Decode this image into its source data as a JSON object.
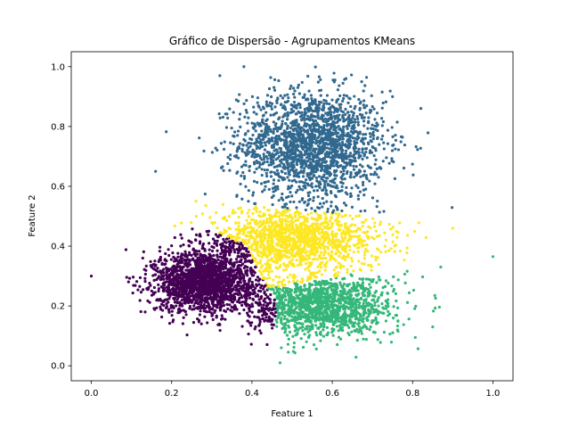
{
  "chart_data": {
    "type": "scatter",
    "title": "Gráfico de Dispersão - Agrupamentos KMeans",
    "xlabel": "Feature 1",
    "ylabel": "Feature 2",
    "xlim": [
      -0.05,
      1.05
    ],
    "ylim": [
      -0.05,
      1.05
    ],
    "xticks": [
      0.0,
      0.2,
      0.4,
      0.6,
      0.8,
      1.0
    ],
    "yticks": [
      0.0,
      0.2,
      0.4,
      0.6,
      0.8,
      1.0
    ],
    "xtick_labels": [
      "0.0",
      "0.2",
      "0.4",
      "0.6",
      "0.8",
      "1.0"
    ],
    "ytick_labels": [
      "0.0",
      "0.2",
      "0.4",
      "0.6",
      "0.8",
      "1.0"
    ],
    "grid": false,
    "colors": [
      "#440154",
      "#35b779",
      "#fde725",
      "#31688e"
    ],
    "cluster_regions": [
      {
        "color": "#31688e",
        "center": [
          0.55,
          0.74
        ],
        "spread": [
          0.09,
          0.09
        ],
        "x_range": [
          0.16,
          0.9
        ],
        "y_range": [
          0.5,
          1.0
        ]
      },
      {
        "color": "#fde725",
        "center": [
          0.5,
          0.42
        ],
        "spread": [
          0.11,
          0.05
        ],
        "x_range": [
          0.2,
          0.9
        ],
        "y_range": [
          0.25,
          0.58
        ]
      },
      {
        "color": "#440154",
        "center": [
          0.28,
          0.28
        ],
        "spread": [
          0.06,
          0.05
        ],
        "x_range": [
          0.08,
          0.45
        ],
        "y_range": [
          0.08,
          0.46
        ]
      },
      {
        "color": "#35b779",
        "center": [
          0.57,
          0.2
        ],
        "spread": [
          0.09,
          0.05
        ],
        "x_range": [
          0.38,
          1.0
        ],
        "y_range": [
          0.0,
          0.37
        ]
      }
    ],
    "outliers": [
      {
        "x": 0.0,
        "y": 0.3,
        "color": "#440154"
      },
      {
        "x": 1.0,
        "y": 0.365,
        "color": "#35b779"
      },
      {
        "x": 0.9,
        "y": 0.46,
        "color": "#fde725"
      },
      {
        "x": 0.87,
        "y": 0.33,
        "color": "#35b779"
      },
      {
        "x": 0.38,
        "y": 1.0,
        "color": "#31688e"
      },
      {
        "x": 0.32,
        "y": 0.97,
        "color": "#31688e"
      },
      {
        "x": 0.75,
        "y": 0.9,
        "color": "#31688e"
      },
      {
        "x": 0.16,
        "y": 0.65,
        "color": "#31688e"
      },
      {
        "x": 0.85,
        "y": 0.13,
        "color": "#35b779"
      },
      {
        "x": 0.47,
        "y": 0.01,
        "color": "#35b779"
      }
    ]
  }
}
